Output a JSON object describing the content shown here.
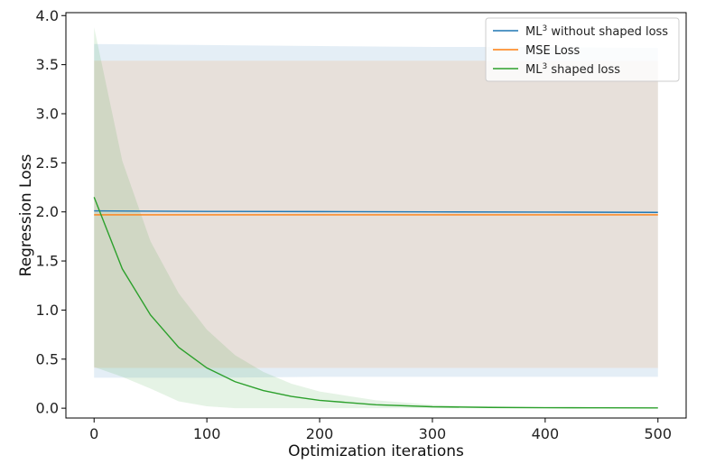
{
  "chart_data": {
    "type": "line",
    "title": "",
    "xlabel": "Optimization iterations",
    "ylabel": "Regression Loss",
    "xlim": [
      -25,
      525
    ],
    "ylim": [
      -0.1,
      4.03
    ],
    "xticks": [
      0,
      100,
      200,
      300,
      400,
      500
    ],
    "yticks": [
      0.0,
      0.5,
      1.0,
      1.5,
      2.0,
      2.5,
      3.0,
      3.5,
      4.0
    ],
    "grid": false,
    "legend_position": "top-right",
    "series": [
      {
        "label_main": "ML",
        "label_sup": "3",
        "label_rest": " without shaped loss",
        "color": "#1f77b4",
        "band_color": "#1f77b4",
        "band_opacity": 0.12,
        "x": [
          0,
          100,
          200,
          300,
          400,
          500
        ],
        "y": [
          2.01,
          2.005,
          2.003,
          2.0,
          1.998,
          1.995
        ],
        "upper": [
          3.71,
          3.7,
          3.69,
          3.68,
          3.68,
          3.67
        ],
        "lower": [
          0.31,
          0.31,
          0.32,
          0.32,
          0.32,
          0.32
        ]
      },
      {
        "label_main": "MSE Loss",
        "label_sup": "",
        "label_rest": "",
        "color": "#ff7f0e",
        "band_color": "#ff7f0e",
        "band_opacity": 0.12,
        "x": [
          0,
          100,
          200,
          300,
          400,
          500
        ],
        "y": [
          1.97,
          1.97,
          1.97,
          1.97,
          1.97,
          1.97
        ],
        "upper": [
          3.54,
          3.54,
          3.54,
          3.54,
          3.54,
          3.54
        ],
        "lower": [
          0.41,
          0.41,
          0.41,
          0.41,
          0.41,
          0.41
        ]
      },
      {
        "label_main": "ML",
        "label_sup": "3",
        "label_rest": " shaped loss",
        "color": "#2ca02c",
        "band_color": "#2ca02c",
        "band_opacity": 0.12,
        "x": [
          0,
          25,
          50,
          75,
          100,
          125,
          150,
          175,
          200,
          250,
          300,
          350,
          400,
          450,
          500
        ],
        "y": [
          2.15,
          1.42,
          0.95,
          0.62,
          0.41,
          0.27,
          0.18,
          0.12,
          0.08,
          0.035,
          0.015,
          0.008,
          0.005,
          0.004,
          0.003
        ],
        "upper": [
          3.88,
          2.52,
          1.7,
          1.17,
          0.8,
          0.54,
          0.37,
          0.25,
          0.17,
          0.08,
          0.035,
          0.018,
          0.01,
          0.006,
          0.004
        ],
        "lower": [
          0.42,
          0.32,
          0.2,
          0.07,
          0.02,
          0.0,
          0.0,
          0.0,
          0.0,
          0.0,
          0.0,
          0.0,
          0.0,
          0.0,
          0.0
        ]
      }
    ]
  }
}
